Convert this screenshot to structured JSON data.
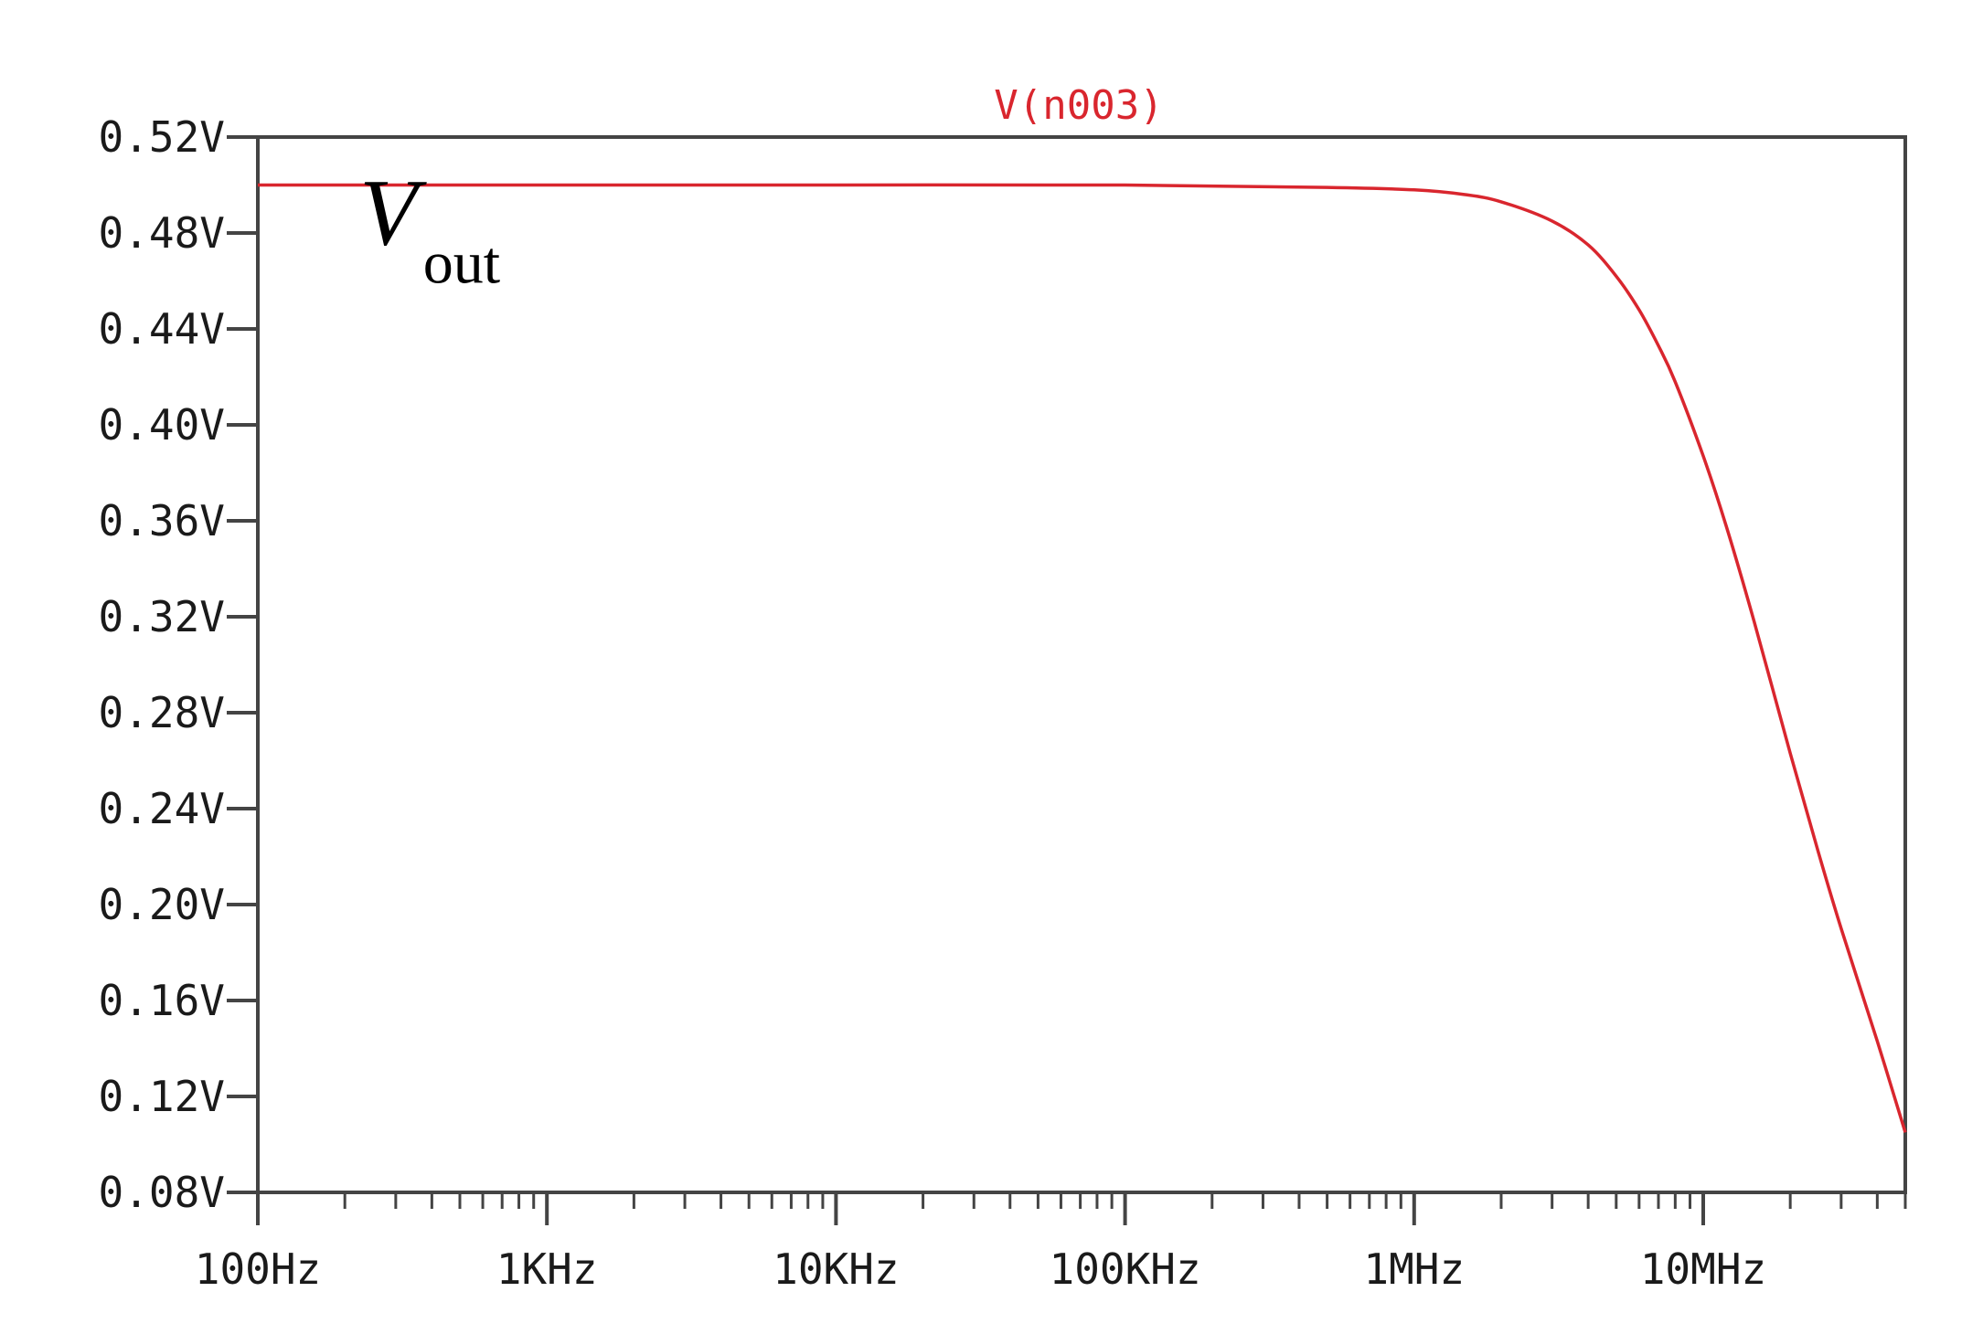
{
  "chart_data": {
    "type": "line",
    "title": "V(n003)",
    "xscale": "log",
    "xlim": [
      100,
      50000000
    ],
    "ylim": [
      0.08,
      0.52
    ],
    "grid": false,
    "x_ticks": [
      {
        "value": 100,
        "label": "100Hz"
      },
      {
        "value": 1000,
        "label": "1KHz"
      },
      {
        "value": 10000,
        "label": "10KHz"
      },
      {
        "value": 100000,
        "label": "100KHz"
      },
      {
        "value": 1000000,
        "label": "1MHz"
      },
      {
        "value": 10000000,
        "label": "10MHz"
      }
    ],
    "y_ticks": [
      {
        "value": 0.52,
        "label": "0.52V"
      },
      {
        "value": 0.48,
        "label": "0.48V"
      },
      {
        "value": 0.44,
        "label": "0.44V"
      },
      {
        "value": 0.4,
        "label": "0.40V"
      },
      {
        "value": 0.36,
        "label": "0.36V"
      },
      {
        "value": 0.32,
        "label": "0.32V"
      },
      {
        "value": 0.28,
        "label": "0.28V"
      },
      {
        "value": 0.24,
        "label": "0.24V"
      },
      {
        "value": 0.2,
        "label": "0.20V"
      },
      {
        "value": 0.16,
        "label": "0.16V"
      },
      {
        "value": 0.12,
        "label": "0.12V"
      },
      {
        "value": 0.08,
        "label": "0.08V"
      }
    ],
    "series": [
      {
        "name": "V(n003)",
        "color": "#d9262e",
        "x": [
          100,
          1000,
          10000,
          100000,
          500000,
          1000000,
          1500000,
          2000000,
          3000000,
          4000000,
          5000000,
          6000000,
          7000000,
          8000000,
          10000000,
          12000000,
          15000000,
          20000000,
          25000000,
          30000000,
          40000000,
          50000000
        ],
        "y": [
          0.5,
          0.5,
          0.5,
          0.5,
          0.499,
          0.498,
          0.496,
          0.493,
          0.485,
          0.475,
          0.462,
          0.448,
          0.433,
          0.418,
          0.387,
          0.358,
          0.318,
          0.263,
          0.222,
          0.19,
          0.143,
          0.105
        ]
      }
    ],
    "annotations": [
      {
        "text": "V",
        "subscript": "out",
        "x": 1000,
        "y": 0.46
      }
    ]
  }
}
